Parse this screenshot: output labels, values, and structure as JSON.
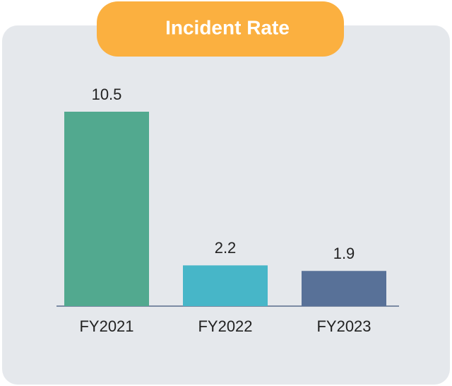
{
  "chart_data": {
    "type": "bar",
    "title": "Incident Rate",
    "categories": [
      "FY2021",
      "FY2022",
      "FY2023"
    ],
    "values": [
      10.5,
      2.2,
      1.9
    ],
    "colors": [
      "#52a98f",
      "#47b6c8",
      "#587198"
    ]
  }
}
